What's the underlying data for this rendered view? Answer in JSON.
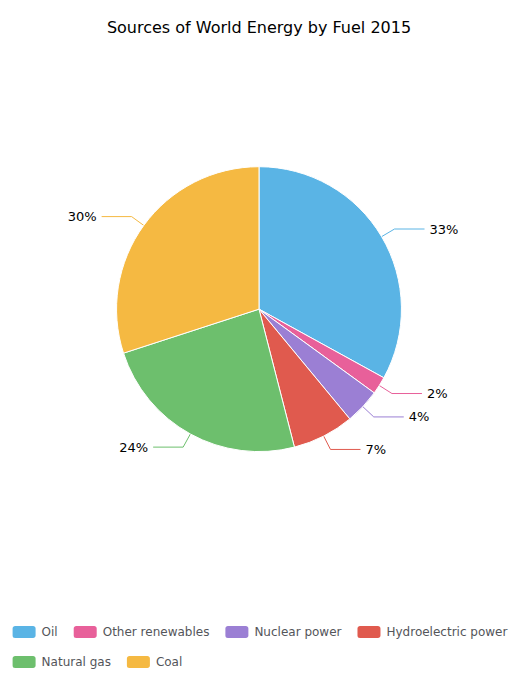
{
  "chart_data": {
    "type": "pie",
    "title": "Sources of World Energy by Fuel 2015",
    "categories": [
      "Oil",
      "Other renewables",
      "Nuclear power",
      "Hydroelectric power",
      "Natural gas",
      "Coal"
    ],
    "values": [
      33,
      2,
      4,
      7,
      24,
      30
    ],
    "value_labels": [
      "33%",
      "2%",
      "4%",
      "7%",
      "24%",
      "30%"
    ],
    "colors": [
      "#5ab4e5",
      "#e8609a",
      "#9b7fd4",
      "#e05a4e",
      "#6dbf6d",
      "#f5b942"
    ],
    "data_labels": true,
    "legend": "bottom"
  }
}
